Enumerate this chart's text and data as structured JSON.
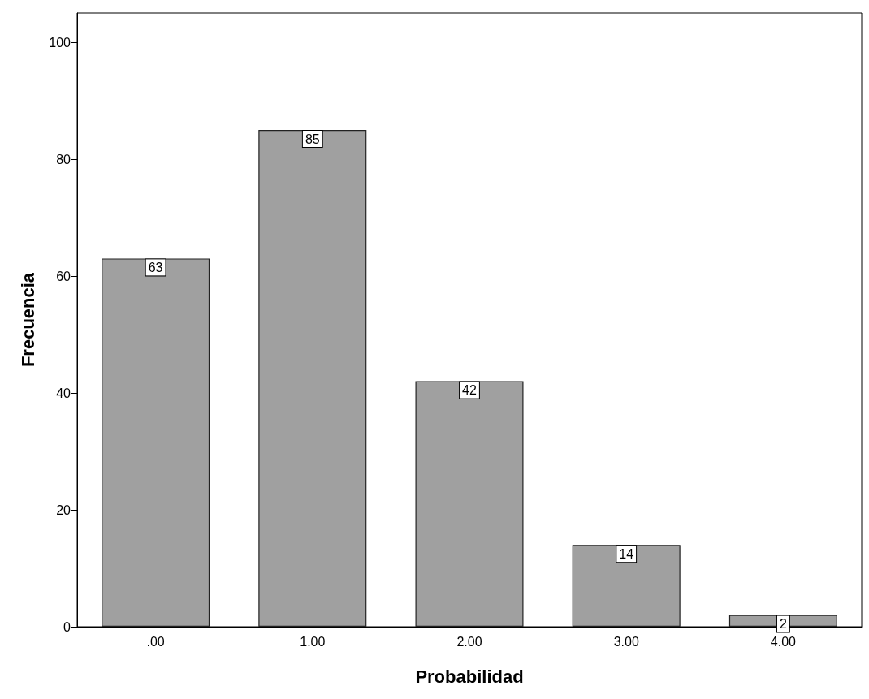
{
  "chart_data": {
    "type": "bar",
    "xlabel": "Probabilidad",
    "ylabel": "Frecuencia",
    "categories": [
      ".00",
      "1.00",
      "2.00",
      "3.00",
      "4.00"
    ],
    "values": [
      63,
      85,
      42,
      14,
      2
    ],
    "color": "#a0a0a0",
    "ylim": [
      0,
      105
    ],
    "yticks": [
      0,
      20,
      40,
      60,
      80,
      100
    ],
    "data_labels": true
  }
}
